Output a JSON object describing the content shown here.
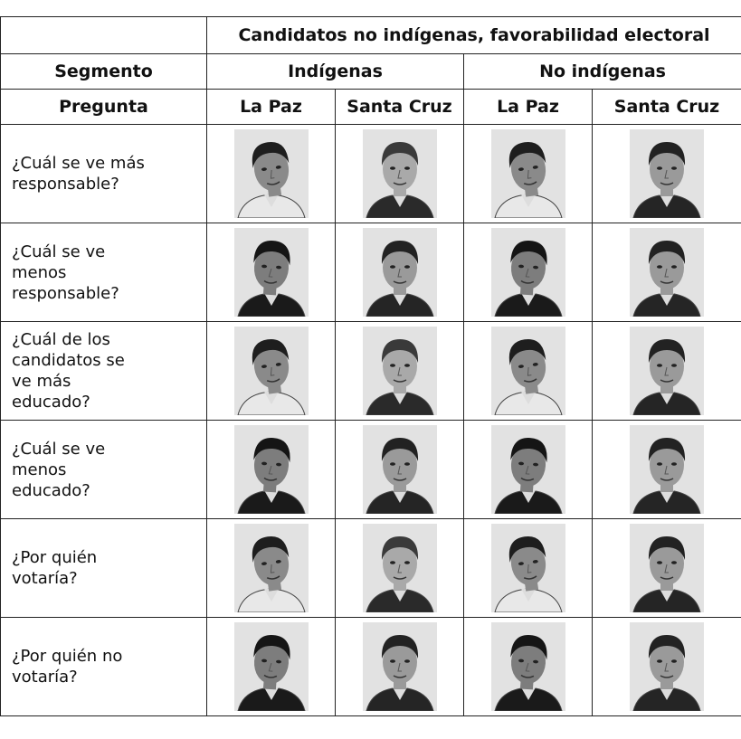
{
  "table": {
    "group_title": "Candidatos no indígenas, favorabilidad electoral",
    "segment_label": "Segmento",
    "segments": [
      "Indígenas",
      "No indígenas"
    ],
    "question_label": "Pregunta",
    "cities": [
      "La Paz",
      "Santa Cruz",
      "La Paz",
      "Santa Cruz"
    ],
    "questions": [
      "¿Cuál se ve más responsable?",
      "¿Cuál se ve menos responsable?",
      "¿Cuál de los candidatos se ve más educado?",
      "¿Cuál se ve menos educado?",
      "¿Por quién votaría?",
      "¿Por quién no votaría?"
    ]
  }
}
